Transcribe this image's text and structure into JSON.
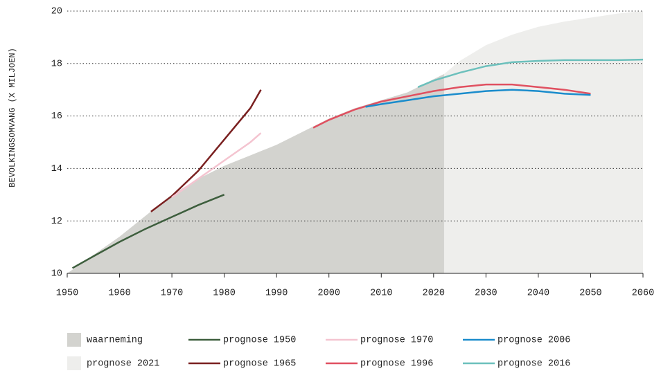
{
  "chart_data": {
    "type": "line",
    "ylabel": "BEVOLKINGSOMVANG (X MILJOEN)",
    "xlim": [
      1950,
      2060
    ],
    "xticks": [
      1950,
      1960,
      1970,
      1980,
      1990,
      2000,
      2010,
      2020,
      2030,
      2040,
      2050,
      2060
    ],
    "ylim": [
      10,
      20
    ],
    "yticks": [
      10,
      12,
      14,
      16,
      18,
      20
    ],
    "grid": true,
    "series": [
      {
        "name": "waarneming",
        "style": "area",
        "color": "#d3d3cf",
        "x": [
          1950,
          1955,
          1960,
          1965,
          1970,
          1975,
          1980,
          1985,
          1990,
          1995,
          2000,
          2005,
          2010,
          2015,
          2020,
          2022
        ],
        "values": [
          10.0,
          10.7,
          11.4,
          12.2,
          13.0,
          13.6,
          14.1,
          14.5,
          14.9,
          15.4,
          15.9,
          16.3,
          16.6,
          16.9,
          17.4,
          17.6
        ]
      },
      {
        "name": "prognose 2021",
        "style": "area",
        "color": "#eeeeec",
        "x": [
          2020,
          2022,
          2025,
          2030,
          2035,
          2040,
          2045,
          2050,
          2055,
          2060
        ],
        "values": [
          17.4,
          17.6,
          18.1,
          18.7,
          19.1,
          19.4,
          19.6,
          19.75,
          19.9,
          20.0
        ]
      },
      {
        "name": "prognose 1950",
        "style": "line",
        "color": "#3d5e3d",
        "x": [
          1951,
          1955,
          1960,
          1965,
          1970,
          1975,
          1980
        ],
        "values": [
          10.2,
          10.65,
          11.2,
          11.7,
          12.15,
          12.6,
          13.0
        ]
      },
      {
        "name": "prognose 1965",
        "style": "line",
        "color": "#7a2020",
        "x": [
          1966,
          1970,
          1975,
          1980,
          1985,
          1987
        ],
        "values": [
          12.35,
          12.95,
          13.9,
          15.1,
          16.3,
          17.0
        ]
      },
      {
        "name": "prognose 1970",
        "style": "line",
        "color": "#f4c4d0",
        "x": [
          1970,
          1975,
          1980,
          1985,
          1987
        ],
        "values": [
          12.9,
          13.6,
          14.3,
          15.0,
          15.35
        ]
      },
      {
        "name": "prognose 1996",
        "style": "line",
        "color": "#e05060",
        "x": [
          1997,
          2000,
          2005,
          2010,
          2015,
          2020,
          2025,
          2030,
          2035,
          2040,
          2045,
          2050
        ],
        "values": [
          15.55,
          15.85,
          16.25,
          16.55,
          16.75,
          16.95,
          17.1,
          17.2,
          17.2,
          17.1,
          17.0,
          16.85
        ]
      },
      {
        "name": "prognose 2006",
        "style": "line",
        "color": "#1a8ccc",
        "x": [
          2007,
          2010,
          2015,
          2020,
          2025,
          2030,
          2035,
          2040,
          2045,
          2050
        ],
        "values": [
          16.35,
          16.45,
          16.6,
          16.75,
          16.85,
          16.95,
          17.0,
          16.95,
          16.85,
          16.8
        ]
      },
      {
        "name": "prognose 2016",
        "style": "line",
        "color": "#6cc0bc",
        "x": [
          2017,
          2020,
          2025,
          2030,
          2035,
          2040,
          2045,
          2050,
          2055,
          2060
        ],
        "values": [
          17.1,
          17.35,
          17.65,
          17.9,
          18.05,
          18.1,
          18.13,
          18.13,
          18.13,
          18.15
        ]
      }
    ]
  }
}
